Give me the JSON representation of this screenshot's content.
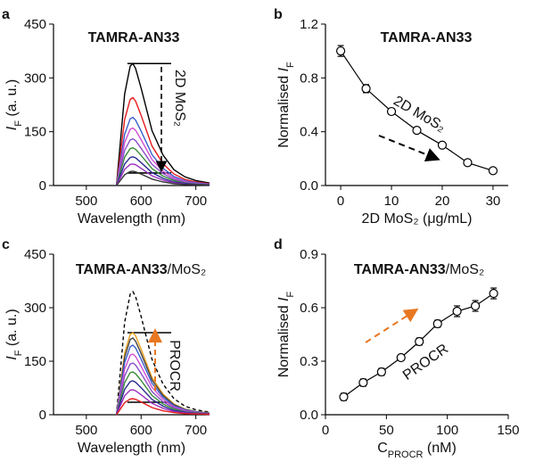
{
  "chart_data": [
    {
      "type": "line",
      "panel_label": "a",
      "title": "TAMRA-AN33",
      "x_label": "Wavelength (nm)",
      "y_label": {
        "symbol": "I",
        "subscript": "F",
        "suffix": " (a. u.)"
      },
      "annotation": "2D MoS₂",
      "xlim": [
        440,
        725
      ],
      "xticks": [
        500,
        600,
        700
      ],
      "ylim": [
        0,
        450
      ],
      "yticks": [
        0,
        150,
        300,
        450
      ],
      "hlines": [
        340,
        35
      ],
      "hline_x": [
        575,
        655
      ],
      "x": [
        555,
        560,
        570,
        580,
        585,
        590,
        600,
        620,
        640,
        660,
        680,
        700,
        725
      ],
      "series": [
        {
          "color": "#000000",
          "values": [
            0,
            85,
            255,
            333,
            340,
            326,
            272,
            153,
            85,
            44,
            24,
            14,
            7
          ]
        },
        {
          "color": "#e41a1c",
          "values": [
            0,
            61,
            184,
            240,
            245,
            235,
            196,
            110,
            61,
            32,
            17,
            10,
            5
          ]
        },
        {
          "color": "#3a5fcd",
          "values": [
            0,
            48,
            143,
            186,
            190,
            182,
            152,
            86,
            48,
            25,
            13,
            8,
            4
          ]
        },
        {
          "color": "#d14fd1",
          "values": [
            0,
            40,
            120,
            157,
            160,
            154,
            128,
            72,
            40,
            21,
            11,
            6,
            3
          ]
        },
        {
          "color": "#8a4fc8",
          "values": [
            0,
            33,
            98,
            127,
            130,
            125,
            104,
            59,
            33,
            17,
            9,
            5,
            3
          ]
        },
        {
          "color": "#3a8a3a",
          "values": [
            0,
            26,
            79,
            103,
            105,
            101,
            84,
            47,
            26,
            14,
            7,
            4,
            2
          ]
        },
        {
          "color": "#2a2a90",
          "values": [
            0,
            20,
            60,
            78,
            80,
            77,
            64,
            36,
            20,
            10,
            6,
            3,
            2
          ]
        },
        {
          "color": "#9b30c0",
          "values": [
            0,
            15,
            45,
            59,
            60,
            58,
            48,
            27,
            15,
            8,
            4,
            2,
            1
          ]
        },
        {
          "color": "#333333",
          "values": [
            0,
            10,
            30,
            39,
            40,
            38,
            32,
            18,
            10,
            5,
            3,
            2,
            1
          ]
        }
      ]
    },
    {
      "type": "scatter",
      "panel_label": "b",
      "title": "TAMRA-AN33",
      "x_label": "2D MoS₂ (μg/mL)",
      "y_label": {
        "prefix": "Normalised ",
        "symbol": "I",
        "subscript": "F"
      },
      "annotation": "2D MoS₂",
      "xlim": [
        -3,
        33
      ],
      "xticks": [
        0,
        10,
        20,
        30
      ],
      "ylim": [
        0,
        1.2
      ],
      "yticks": [
        {
          "value": 0,
          "label": "0.0"
        },
        0.4,
        0.8,
        1.2
      ],
      "x": [
        0,
        5,
        10,
        15,
        20,
        25,
        30
      ],
      "values": [
        1.0,
        0.72,
        0.55,
        0.41,
        0.3,
        0.17,
        0.11
      ],
      "errors": [
        0.04,
        0.03,
        0.02,
        0.02,
        0.02,
        0.02,
        0.02
      ]
    },
    {
      "type": "line",
      "panel_label": "c",
      "title": {
        "bold": "TAMRA-AN33",
        "suffix": "/MoS₂"
      },
      "x_label": "Wavelength (nm)",
      "y_label": {
        "symbol": "I",
        "subscript": "F",
        "suffix": " (a. u.)"
      },
      "annotation": "PROCR",
      "xlim": [
        440,
        725
      ],
      "xticks": [
        500,
        600,
        700
      ],
      "ylim": [
        0,
        450
      ],
      "yticks": [
        0,
        150,
        300,
        450
      ],
      "hlines": [
        230,
        35
      ],
      "hline_x": [
        575,
        655
      ],
      "x": [
        555,
        560,
        570,
        580,
        585,
        590,
        600,
        620,
        640,
        660,
        680,
        700,
        725
      ],
      "series": [
        {
          "color": "#000000",
          "dash": true,
          "values": [
            0,
            86,
            259,
            338,
            345,
            331,
            276,
            155,
            86,
            45,
            24,
            14,
            7
          ]
        },
        {
          "color": "#e8a020",
          "values": [
            0,
            58,
            173,
            225,
            230,
            221,
            184,
            104,
            58,
            30,
            16,
            9,
            5
          ]
        },
        {
          "color": "#444444",
          "values": [
            0,
            54,
            161,
            211,
            215,
            206,
            172,
            97,
            54,
            28,
            15,
            9,
            4
          ]
        },
        {
          "color": "#3a5fcd",
          "values": [
            0,
            49,
            146,
            191,
            195,
            187,
            156,
            88,
            49,
            25,
            14,
            8,
            4
          ]
        },
        {
          "color": "#d14fd1",
          "values": [
            0,
            43,
            128,
            167,
            170,
            163,
            136,
            77,
            43,
            22,
            12,
            7,
            3
          ]
        },
        {
          "color": "#8a4fc8",
          "values": [
            0,
            36,
            109,
            142,
            145,
            139,
            116,
            65,
            36,
            19,
            10,
            6,
            3
          ]
        },
        {
          "color": "#3a8a3a",
          "values": [
            0,
            30,
            90,
            118,
            120,
            115,
            96,
            54,
            30,
            16,
            8,
            5,
            2
          ]
        },
        {
          "color": "#2a2a90",
          "values": [
            0,
            24,
            71,
            93,
            95,
            91,
            76,
            43,
            24,
            12,
            7,
            4,
            2
          ]
        },
        {
          "color": "#9b30c0",
          "values": [
            0,
            18,
            53,
            69,
            70,
            67,
            56,
            32,
            18,
            9,
            5,
            3,
            1
          ]
        },
        {
          "color": "#e41a1c",
          "values": [
            0,
            11,
            34,
            44,
            45,
            43,
            36,
            20,
            11,
            6,
            3,
            2,
            1
          ]
        }
      ]
    },
    {
      "type": "scatter",
      "panel_label": "d",
      "title": {
        "bold": "TAMRA-AN33",
        "suffix": "/MoS₂"
      },
      "x_label": {
        "symbol": "C",
        "subscript": "PROCR",
        "suffix": " (nM)"
      },
      "y_label": {
        "prefix": "Normalised ",
        "symbol": "I",
        "subscript": "F"
      },
      "annotation": "PROCR",
      "xlim": [
        0,
        150
      ],
      "xticks": [
        0,
        50,
        100,
        150
      ],
      "ylim": [
        0,
        0.9
      ],
      "yticks": [
        {
          "value": 0,
          "label": "0.0"
        },
        0.3,
        0.6,
        0.9
      ],
      "x": [
        15,
        31,
        46,
        62,
        77,
        92,
        108,
        123,
        138
      ],
      "values": [
        0.1,
        0.18,
        0.24,
        0.32,
        0.41,
        0.51,
        0.58,
        0.61,
        0.68
      ],
      "errors": [
        0.02,
        0.02,
        0.02,
        0.01,
        0.02,
        0.02,
        0.03,
        0.03,
        0.03
      ]
    }
  ]
}
